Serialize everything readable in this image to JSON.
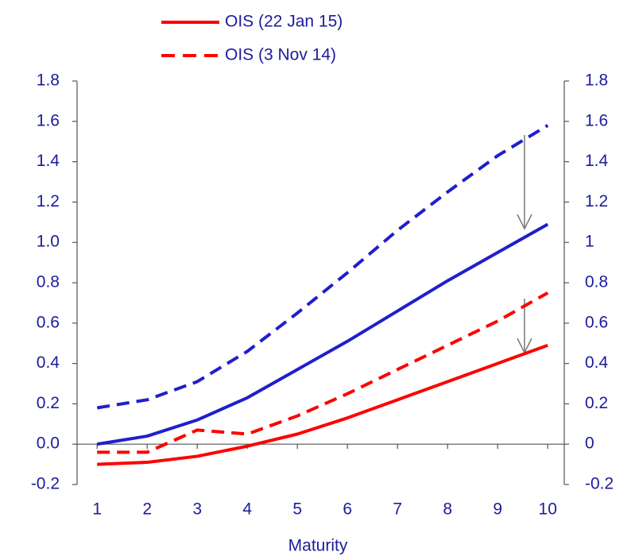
{
  "chart_data": {
    "type": "line",
    "x_label": "Maturity",
    "x": [
      1,
      2,
      3,
      4,
      5,
      6,
      7,
      8,
      9,
      10
    ],
    "xlim": [
      0.6,
      10.33
    ],
    "xticks": [
      1,
      2,
      3,
      4,
      5,
      6,
      7,
      8,
      9,
      10
    ],
    "ylim": [
      -0.2,
      1.8
    ],
    "yticks": [
      -0.2,
      {
        "value": 0,
        "label": "0.0"
      },
      0.2,
      0.4,
      0.6,
      0.8,
      {
        "value": 1,
        "label": "1.0"
      },
      1.2,
      1.4,
      1.6,
      1.8
    ],
    "y2lim": [
      -0.2,
      1.8
    ],
    "y2ticks": [
      -0.2,
      0,
      0.2,
      0.4,
      0.6,
      0.8,
      1,
      1.2,
      1.4,
      1.6,
      1.8
    ],
    "series": [
      {
        "color": "#1f1fcc",
        "dashed": true,
        "values": [
          0.18,
          0.22,
          0.31,
          0.46,
          0.65,
          0.85,
          1.06,
          1.25,
          1.43,
          1.58
        ]
      },
      {
        "color": "#1f1fcc",
        "dashed": false,
        "values": [
          0.0,
          0.04,
          0.12,
          0.23,
          0.37,
          0.51,
          0.66,
          0.81,
          0.95,
          1.09
        ]
      },
      {
        "name": "OIS (3 Nov 14)",
        "color": "#ff0000",
        "dashed": true,
        "values": [
          -0.04,
          -0.04,
          0.07,
          0.05,
          0.14,
          0.25,
          0.37,
          0.49,
          0.61,
          0.75
        ]
      },
      {
        "name": "OIS (22 Jan 15)",
        "color": "#ff0000",
        "dashed": false,
        "values": [
          -0.1,
          -0.09,
          -0.06,
          -0.01,
          0.05,
          0.13,
          0.22,
          0.31,
          0.4,
          0.49
        ]
      }
    ]
  }
}
